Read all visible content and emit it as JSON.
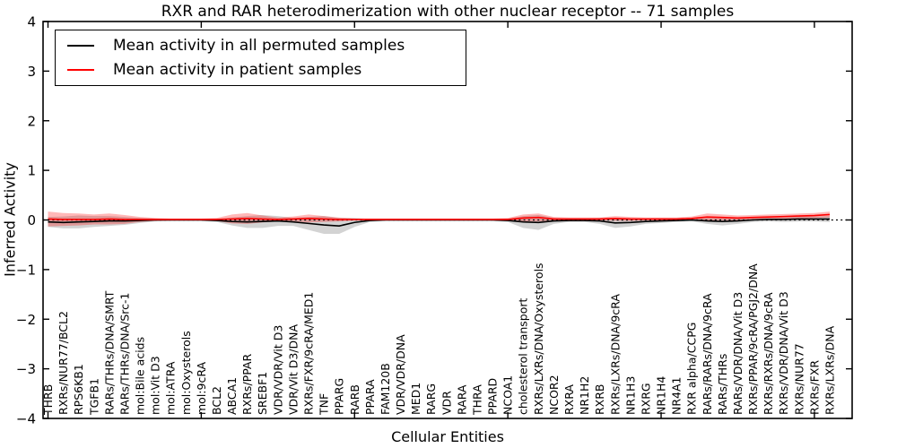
{
  "chart_data": {
    "type": "line",
    "title": "RXR and RAR heterodimerization with other nuclear receptor -- 71 samples",
    "xlabel": "Cellular Entities",
    "ylabel": "Inferred Activity",
    "ylim": [
      -4,
      4
    ],
    "yticks": [
      4,
      3,
      2,
      1,
      0,
      -1,
      -2,
      -3,
      -4
    ],
    "grid": false,
    "legend_position": "upper left",
    "zero_line": {
      "y": 0,
      "style": "dotted",
      "color": "#000000"
    },
    "categories": [
      "THRB",
      "RXRs/NUR77/BCL2",
      "RPS6KB1",
      "TGFB1",
      "RARs/THRs/DNA/SMRT",
      "RARs/THRs/DNA/Src-1",
      "mol:Bile acids",
      "mol:Vit D3",
      "mol:ATRA",
      "mol:Oxysterols",
      "mol:9cRA",
      "BCL2",
      "ABCA1",
      "RXRs/PPAR",
      "SREBF1",
      "VDR/VDR/Vit D3",
      "VDR/Vit D3/DNA",
      "RXRs/FXR/9cRA/MED1",
      "TNF",
      "PPARG",
      "RARB",
      "PPARA",
      "FAM120B",
      "VDR/VDR/DNA",
      "MED1",
      "RARG",
      "VDR",
      "RARA",
      "THRA",
      "PPARD",
      "NCOA1",
      "cholesterol transport",
      "RXRs/LXRs/DNA/Oxysterols",
      "NCOR2",
      "RXRA",
      "NR1H2",
      "RXRB",
      "RXRs/LXRs/DNA/9cRA",
      "NR1H3",
      "RXRG",
      "NR1H4",
      "NR4A1",
      "RXR alpha/CCPG",
      "RARs/RARs/DNA/9cRA",
      "RARs/THRs",
      "RARs/VDR/DNA/Vit D3",
      "RXRs/PPAR/9cRA/PGJ2/DNA",
      "RXRs/RXRs/DNA/9cRA",
      "RXRs/VDR/DNA/Vit D3",
      "RXRs/NUR77",
      "RXRs/FXR",
      "RXRs/LXRs/DNA"
    ],
    "series": [
      {
        "name": "Mean activity in all permuted samples",
        "color": "#000000",
        "values": [
          -0.04,
          -0.05,
          -0.04,
          -0.03,
          -0.02,
          -0.02,
          -0.01,
          0,
          0,
          0,
          0,
          -0.01,
          -0.03,
          -0.04,
          -0.03,
          -0.02,
          -0.04,
          -0.07,
          -0.1,
          -0.12,
          -0.05,
          -0.01,
          0,
          0,
          0,
          0,
          0,
          0,
          0,
          0,
          -0.01,
          -0.04,
          -0.05,
          -0.02,
          -0.01,
          -0.01,
          -0.02,
          -0.06,
          -0.05,
          -0.03,
          -0.02,
          -0.01,
          0,
          -0.02,
          -0.03,
          -0.02,
          0,
          0.01,
          0.01,
          0.02,
          0.02,
          0.02
        ],
        "band": {
          "color": "rgba(128,128,128,0.35)",
          "half_widths": [
            0.1,
            0.12,
            0.13,
            0.11,
            0.1,
            0.08,
            0.05,
            0.03,
            0.02,
            0.02,
            0.02,
            0.03,
            0.08,
            0.12,
            0.13,
            0.1,
            0.08,
            0.13,
            0.18,
            0.16,
            0.09,
            0.03,
            0.02,
            0.02,
            0.02,
            0.02,
            0.02,
            0.02,
            0.02,
            0.02,
            0.03,
            0.12,
            0.15,
            0.06,
            0.03,
            0.03,
            0.06,
            0.1,
            0.08,
            0.05,
            0.04,
            0.03,
            0.03,
            0.06,
            0.08,
            0.06,
            0.04,
            0.04,
            0.05,
            0.05,
            0.05,
            0.06
          ]
        }
      },
      {
        "name": "Mean activity in patient samples",
        "color": "#ff0000",
        "values": [
          0.02,
          0.01,
          0.01,
          0.01,
          0.02,
          0.01,
          0.01,
          0.01,
          0.01,
          0.01,
          0.01,
          0.01,
          0.02,
          0.03,
          0.02,
          0.01,
          0.02,
          0.03,
          0.02,
          0.01,
          0.01,
          0.01,
          0.01,
          0.01,
          0.01,
          0.01,
          0.01,
          0.01,
          0.01,
          0.01,
          0.01,
          0.04,
          0.05,
          0.02,
          0.02,
          0.02,
          0.02,
          0.03,
          0.02,
          0.02,
          0.02,
          0.02,
          0.03,
          0.06,
          0.05,
          0.04,
          0.05,
          0.06,
          0.07,
          0.08,
          0.09,
          0.11
        ],
        "band": {
          "color": "rgba(255,0,0,0.28)",
          "half_widths": [
            0.15,
            0.13,
            0.12,
            0.1,
            0.11,
            0.09,
            0.05,
            0.03,
            0.02,
            0.02,
            0.02,
            0.03,
            0.09,
            0.11,
            0.07,
            0.04,
            0.05,
            0.08,
            0.06,
            0.04,
            0.02,
            0.02,
            0.02,
            0.02,
            0.02,
            0.02,
            0.02,
            0.02,
            0.02,
            0.02,
            0.03,
            0.07,
            0.08,
            0.04,
            0.03,
            0.03,
            0.03,
            0.05,
            0.04,
            0.03,
            0.03,
            0.03,
            0.04,
            0.07,
            0.06,
            0.05,
            0.05,
            0.05,
            0.05,
            0.05,
            0.05,
            0.06
          ]
        }
      }
    ]
  }
}
